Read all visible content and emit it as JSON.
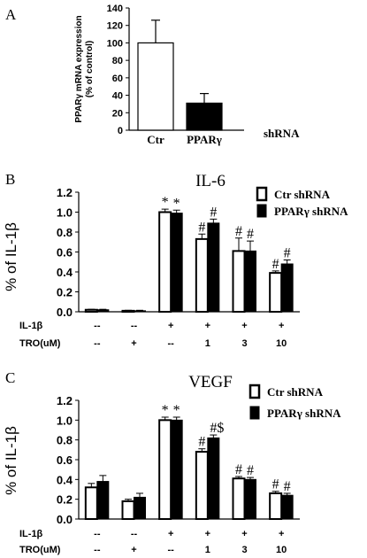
{
  "chart_data": [
    {
      "panel": "A",
      "type": "bar",
      "title": "",
      "ylabel": "PPARγ mRNA expression (% of control)",
      "ylabel_lines": [
        "PPARγ mRNA expression",
        "(% of control)"
      ],
      "ylim": [
        0,
        140
      ],
      "yticks": [
        "0",
        "20",
        "40",
        "60",
        "80",
        "100",
        "120",
        "140"
      ],
      "categories": [
        "Ctr",
        "PPARγ"
      ],
      "xlabel": "shRNA",
      "values": [
        100,
        31
      ],
      "errors": [
        26,
        11
      ],
      "fills": [
        "#ffffff",
        "#000000"
      ]
    },
    {
      "panel": "B",
      "type": "bar",
      "title": "IL-6",
      "ylabel": "% of IL-1β",
      "ylim": [
        0,
        1.2
      ],
      "yticks": [
        "0.0",
        "0.2",
        "0.4",
        "0.6",
        "0.8",
        "1.0",
        "1.2"
      ],
      "row_labels": [
        "IL-1β",
        "TRO(uM)"
      ],
      "row1": [
        "--",
        "--",
        "+",
        "+",
        "+",
        "+"
      ],
      "row2": [
        "--",
        "+",
        "--",
        "1",
        "3",
        "10"
      ],
      "legend": [
        "Ctr shRNA",
        "PPARγ shRNA"
      ],
      "legend_position": "top-right",
      "series": [
        {
          "name": "Ctr shRNA",
          "fill": "#ffffff",
          "values": [
            0.02,
            0.01,
            1.0,
            0.73,
            0.61,
            0.39
          ],
          "errors": [
            0.005,
            0.005,
            0.03,
            0.05,
            0.13,
            0.02
          ],
          "annotations": [
            "",
            "",
            "*",
            "#",
            "#",
            "#"
          ]
        },
        {
          "name": "PPARγ shRNA",
          "fill": "#000000",
          "values": [
            0.02,
            0.01,
            0.99,
            0.89,
            0.61,
            0.48
          ],
          "errors": [
            0.005,
            0.005,
            0.03,
            0.04,
            0.1,
            0.04
          ],
          "annotations": [
            "",
            "",
            "*",
            "#",
            "#",
            "#"
          ]
        }
      ]
    },
    {
      "panel": "C",
      "type": "bar",
      "title": "VEGF",
      "ylabel": "% of IL-1β",
      "ylim": [
        0,
        1.2
      ],
      "yticks": [
        "0.0",
        "0.2",
        "0.4",
        "0.6",
        "0.8",
        "1.0",
        "1.2"
      ],
      "row_labels": [
        "IL-1β",
        "TRO(uM)"
      ],
      "row1": [
        "--",
        "--",
        "+",
        "+",
        "+",
        "+"
      ],
      "row2": [
        "--",
        "+",
        "--",
        "1",
        "3",
        "10"
      ],
      "legend": [
        "Ctr shRNA",
        "PPARγ shRNA"
      ],
      "legend_position": "top-right",
      "series": [
        {
          "name": "Ctr shRNA",
          "fill": "#ffffff",
          "values": [
            0.32,
            0.18,
            1.0,
            0.68,
            0.41,
            0.26
          ],
          "errors": [
            0.04,
            0.02,
            0.03,
            0.03,
            0.02,
            0.02
          ],
          "annotations": [
            "",
            "",
            "*",
            "#",
            "#",
            "#"
          ]
        },
        {
          "name": "PPARγ shRNA",
          "fill": "#000000",
          "values": [
            0.38,
            0.22,
            1.0,
            0.82,
            0.4,
            0.24
          ],
          "errors": [
            0.06,
            0.04,
            0.03,
            0.03,
            0.02,
            0.02
          ],
          "annotations": [
            "",
            "",
            "*",
            "#$",
            "#",
            "#"
          ]
        }
      ]
    }
  ],
  "panel_letters": [
    "A",
    "B",
    "C"
  ]
}
